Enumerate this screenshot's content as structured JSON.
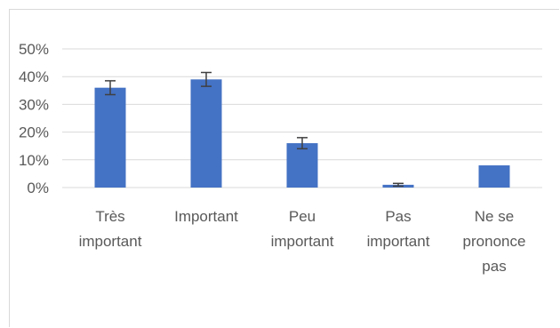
{
  "chart_data": {
    "type": "bar",
    "categories": [
      [
        "Très",
        "important"
      ],
      [
        "Important"
      ],
      [
        "Peu",
        "important"
      ],
      [
        "Pas",
        "important"
      ],
      [
        "Ne se",
        "prononce",
        "pas"
      ]
    ],
    "values": [
      0.36,
      0.39,
      0.16,
      0.01,
      0.08
    ],
    "error_bars": [
      0.025,
      0.025,
      0.02,
      0.005,
      0.0
    ],
    "yticks": [
      "0%",
      "10%",
      "20%",
      "30%",
      "40%",
      "50%"
    ],
    "ylim": [
      0,
      0.5
    ],
    "grid": true,
    "bar_color": "#4472c4",
    "error_color": "#404040",
    "grid_color": "#d9d9d9"
  }
}
